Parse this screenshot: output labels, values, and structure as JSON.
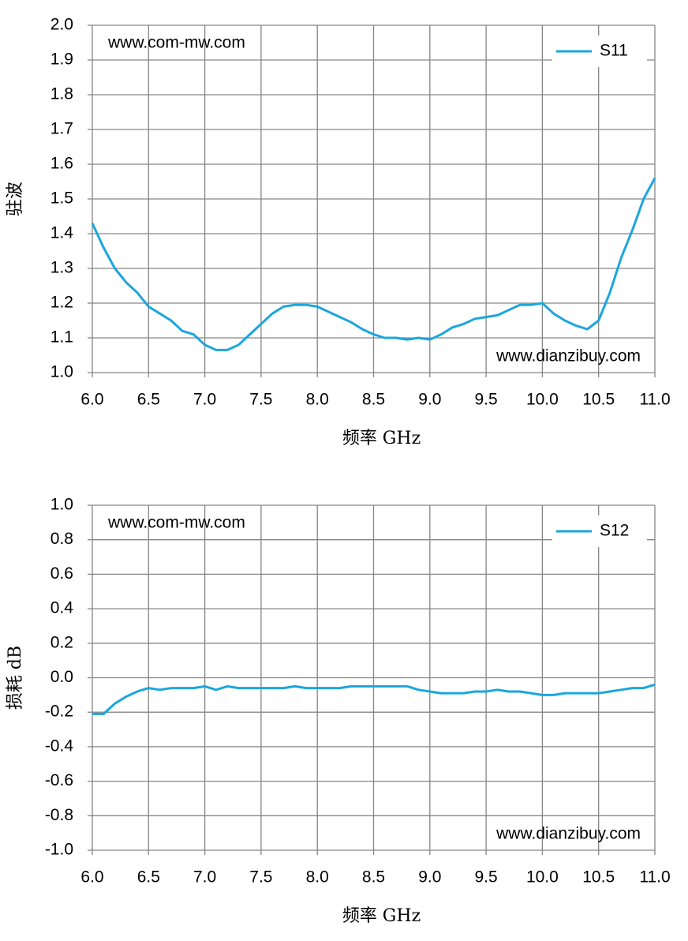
{
  "chart_data": [
    {
      "type": "line",
      "xlabel": "频率 GHz",
      "ylabel": "驻波",
      "annotations": [
        "www.com-mw.com",
        "www.dianzibuy.com"
      ],
      "x": [
        6.0,
        6.1,
        6.2,
        6.3,
        6.4,
        6.5,
        6.6,
        6.7,
        6.8,
        6.9,
        7.0,
        7.1,
        7.2,
        7.3,
        7.4,
        7.5,
        7.6,
        7.7,
        7.8,
        7.9,
        8.0,
        8.1,
        8.2,
        8.3,
        8.4,
        8.5,
        8.6,
        8.7,
        8.8,
        8.9,
        9.0,
        9.1,
        9.2,
        9.3,
        9.4,
        9.5,
        9.6,
        9.7,
        9.8,
        9.9,
        10.0,
        10.1,
        10.2,
        10.3,
        10.4,
        10.5,
        10.6,
        10.7,
        10.8,
        10.9,
        11.0
      ],
      "series": [
        {
          "name": "S11",
          "color": "#1ba6dd",
          "values": [
            1.43,
            1.36,
            1.3,
            1.26,
            1.23,
            1.19,
            1.17,
            1.15,
            1.12,
            1.11,
            1.08,
            1.065,
            1.065,
            1.08,
            1.11,
            1.14,
            1.17,
            1.19,
            1.195,
            1.195,
            1.19,
            1.175,
            1.16,
            1.145,
            1.125,
            1.11,
            1.1,
            1.1,
            1.095,
            1.1,
            1.095,
            1.11,
            1.13,
            1.14,
            1.155,
            1.16,
            1.165,
            1.18,
            1.195,
            1.195,
            1.2,
            1.17,
            1.15,
            1.135,
            1.125,
            1.15,
            1.23,
            1.33,
            1.41,
            1.5,
            1.56
          ]
        }
      ],
      "xlim": [
        6,
        11
      ],
      "xticks": [
        {
          "value": 6,
          "label": "6.0"
        },
        6.5,
        {
          "value": 7,
          "label": "7.0"
        },
        7.5,
        {
          "value": 8,
          "label": "8.0"
        },
        8.5,
        {
          "value": 9,
          "label": "9.0"
        },
        9.5,
        {
          "value": 10,
          "label": "10.0"
        },
        10.5,
        {
          "value": 11,
          "label": "11.0"
        }
      ],
      "ylim": [
        1,
        2
      ],
      "yticks": [
        {
          "value": 1,
          "label": "1.0"
        },
        1.1,
        1.2,
        1.3,
        1.4,
        1.5,
        1.6,
        1.7,
        1.8,
        1.9,
        {
          "value": 2,
          "label": "2.0"
        }
      ],
      "grid": true,
      "legend": "upper right"
    },
    {
      "type": "line",
      "xlabel": "频率 GHz",
      "ylabel": "损耗 dB",
      "annotations": [
        "www.com-mw.com",
        "www.dianzibuy.com"
      ],
      "x": [
        6.0,
        6.1,
        6.2,
        6.3,
        6.4,
        6.5,
        6.6,
        6.7,
        6.8,
        6.9,
        7.0,
        7.1,
        7.2,
        7.3,
        7.4,
        7.5,
        7.6,
        7.7,
        7.8,
        7.9,
        8.0,
        8.1,
        8.2,
        8.3,
        8.4,
        8.5,
        8.6,
        8.7,
        8.8,
        8.9,
        9.0,
        9.1,
        9.2,
        9.3,
        9.4,
        9.5,
        9.6,
        9.7,
        9.8,
        9.9,
        10.0,
        10.1,
        10.2,
        10.3,
        10.4,
        10.5,
        10.6,
        10.7,
        10.8,
        10.9,
        11.0
      ],
      "series": [
        {
          "name": "S12",
          "color": "#1ba6dd",
          "values": [
            -0.21,
            -0.21,
            -0.15,
            -0.11,
            -0.08,
            -0.06,
            -0.07,
            -0.06,
            -0.06,
            -0.06,
            -0.05,
            -0.07,
            -0.05,
            -0.06,
            -0.06,
            -0.06,
            -0.06,
            -0.06,
            -0.05,
            -0.06,
            -0.06,
            -0.06,
            -0.06,
            -0.05,
            -0.05,
            -0.05,
            -0.05,
            -0.05,
            -0.05,
            -0.07,
            -0.08,
            -0.09,
            -0.09,
            -0.09,
            -0.08,
            -0.08,
            -0.07,
            -0.08,
            -0.08,
            -0.09,
            -0.1,
            -0.1,
            -0.09,
            -0.09,
            -0.09,
            -0.09,
            -0.08,
            -0.07,
            -0.06,
            -0.06,
            -0.04
          ]
        }
      ],
      "xlim": [
        6,
        11
      ],
      "xticks": [
        {
          "value": 6,
          "label": "6.0"
        },
        6.5,
        {
          "value": 7,
          "label": "7.0"
        },
        7.5,
        {
          "value": 8,
          "label": "8.0"
        },
        8.5,
        {
          "value": 9,
          "label": "9.0"
        },
        9.5,
        {
          "value": 10,
          "label": "10.0"
        },
        10.5,
        {
          "value": 11,
          "label": "11.0"
        }
      ],
      "ylim": [
        -1,
        1
      ],
      "yticks": [
        {
          "value": -1,
          "label": "-1.0"
        },
        -0.8,
        -0.6,
        -0.4,
        -0.2,
        {
          "value": 0,
          "label": "0.0"
        },
        0.2,
        0.4,
        0.6,
        0.8,
        {
          "value": 1,
          "label": "1.0"
        }
      ],
      "grid": true,
      "legend": "upper right"
    }
  ]
}
